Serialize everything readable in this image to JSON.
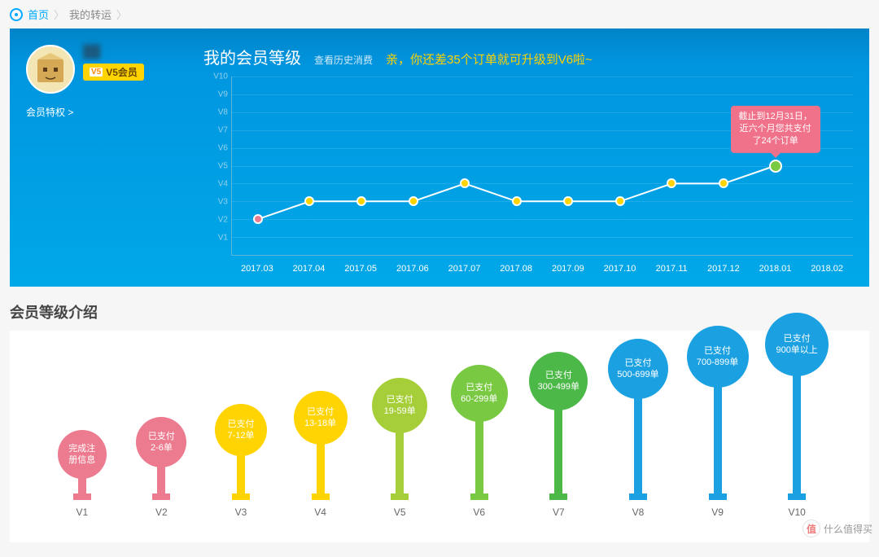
{
  "breadcrumb": {
    "home": "首页",
    "current": "我的转运"
  },
  "profile": {
    "name": "██",
    "badge_level": "V5",
    "badge_text": "V5会员",
    "privilege_link": "会员特权 >"
  },
  "chart": {
    "title": "我的会员等级",
    "history_link": "查看历史消费",
    "upgrade_hint": "亲，你还差35个订单就可升级到V6啦~",
    "y_labels": [
      "V1",
      "V2",
      "V3",
      "V4",
      "V5",
      "V6",
      "V7",
      "V8",
      "V9",
      "V10"
    ],
    "y_max": 10,
    "x_labels": [
      "2017.03",
      "2017.04",
      "2017.05",
      "2017.06",
      "2017.07",
      "2017.08",
      "2017.09",
      "2017.10",
      "2017.11",
      "2017.12",
      "2018.01",
      "2018.02"
    ],
    "points": [
      {
        "x": 0,
        "y": 2,
        "color": "#ec7b8f"
      },
      {
        "x": 1,
        "y": 3,
        "color": "#ffd400"
      },
      {
        "x": 2,
        "y": 3,
        "color": "#ffd400"
      },
      {
        "x": 3,
        "y": 3,
        "color": "#ffd400"
      },
      {
        "x": 4,
        "y": 4,
        "color": "#ffd400"
      },
      {
        "x": 5,
        "y": 3,
        "color": "#ffd400"
      },
      {
        "x": 6,
        "y": 3,
        "color": "#ffd400"
      },
      {
        "x": 7,
        "y": 3,
        "color": "#ffd400"
      },
      {
        "x": 8,
        "y": 4,
        "color": "#ffd400"
      },
      {
        "x": 9,
        "y": 4,
        "color": "#ffd400"
      },
      {
        "x": 10,
        "y": 5,
        "color": "#7ac943",
        "tooltip": "截止到12月31日，\n近六个月您共支付\n了24个订单"
      }
    ],
    "line_color": "#ffffff",
    "line_width": 2,
    "grid_color": "rgba(255,255,255,0.12)"
  },
  "intro": {
    "title": "会员等级介绍",
    "levels": [
      {
        "label": "V1",
        "line1": "完成注",
        "line2": "册信息",
        "color": "#ec7b8f",
        "size": 60,
        "stem": 22
      },
      {
        "label": "V2",
        "line1": "已支付",
        "line2": "2-6单",
        "color": "#ec7b8f",
        "size": 62,
        "stem": 36
      },
      {
        "label": "V3",
        "line1": "已支付",
        "line2": "7-12单",
        "color": "#ffd400",
        "size": 64,
        "stem": 50
      },
      {
        "label": "V4",
        "line1": "已支付",
        "line2": "13-18单",
        "color": "#ffd400",
        "size": 66,
        "stem": 64
      },
      {
        "label": "V5",
        "line1": "已支付",
        "line2": "19-59单",
        "color": "#a6ce39",
        "size": 68,
        "stem": 78
      },
      {
        "label": "V6",
        "line1": "已支付",
        "line2": "60-299单",
        "color": "#7ac943",
        "size": 70,
        "stem": 92
      },
      {
        "label": "V7",
        "line1": "已支付",
        "line2": "300-499单",
        "color": "#4cb848",
        "size": 72,
        "stem": 106
      },
      {
        "label": "V8",
        "line1": "已支付",
        "line2": "500-699单",
        "color": "#1ba1e2",
        "size": 74,
        "stem": 120
      },
      {
        "label": "V9",
        "line1": "已支付",
        "line2": "700-899单",
        "color": "#1ba1e2",
        "size": 76,
        "stem": 134
      },
      {
        "label": "V10",
        "line1": "已支付",
        "line2": "900单以上",
        "color": "#1ba1e2",
        "size": 78,
        "stem": 148
      }
    ]
  },
  "watermark": "什么值得买"
}
